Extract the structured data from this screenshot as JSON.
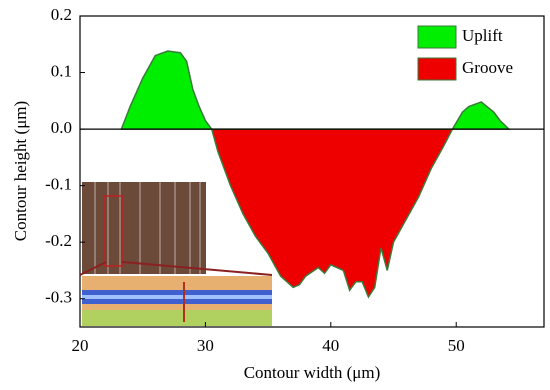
{
  "chart_data": {
    "type": "area",
    "xlabel": "Contour width (μm)",
    "ylabel": "Contour height (μm)",
    "xlim": [
      20,
      57
    ],
    "ylim": [
      -0.35,
      0.2
    ],
    "xticks": [
      20,
      30,
      40,
      50
    ],
    "yticks": [
      0.2,
      0.1,
      {
        "value": 0,
        "label": "0.0"
      },
      -0.1,
      -0.2,
      -0.3
    ],
    "legend": "upper right",
    "series": [
      {
        "name": "Uplift",
        "color": "#00ee00",
        "x": [
          23.3,
          24,
          25,
          26,
          27,
          28,
          28.5,
          29,
          29.5,
          30,
          30.5,
          40,
          49.7,
          50.5,
          51,
          52,
          53,
          53.5,
          54.2
        ],
        "values": [
          0,
          0.04,
          0.09,
          0.13,
          0.138,
          0.135,
          0.12,
          0.07,
          0.04,
          0.015,
          0,
          null,
          0,
          0.03,
          0.04,
          0.048,
          0.03,
          0.015,
          0
        ]
      },
      {
        "name": "Groove",
        "color": "#ee0000",
        "x": [
          30.5,
          31,
          32,
          33,
          34,
          35,
          36,
          37,
          37.5,
          38,
          39,
          39.5,
          40,
          41,
          41.5,
          42,
          42.5,
          43,
          43.5,
          44,
          44.5,
          45,
          46,
          47,
          48,
          49,
          49.7
        ],
        "values": [
          0,
          -0.04,
          -0.1,
          -0.15,
          -0.19,
          -0.22,
          -0.26,
          -0.28,
          -0.275,
          -0.26,
          -0.245,
          -0.255,
          -0.24,
          -0.25,
          -0.285,
          -0.27,
          -0.27,
          -0.297,
          -0.28,
          -0.21,
          -0.25,
          -0.2,
          -0.16,
          -0.12,
          -0.07,
          -0.03,
          0
        ]
      }
    ]
  }
}
